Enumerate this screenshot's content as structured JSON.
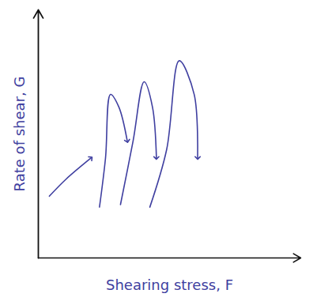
{
  "chart_data": {
    "type": "line",
    "x_label": "Shearing stress, F",
    "y_label": "Rate of shear, G",
    "xlim": [
      0,
      100
    ],
    "ylim": [
      0,
      100
    ],
    "tick_labels": false,
    "series": [
      {
        "color": "#3f3fa0",
        "marker": "arrow",
        "x": [
          4.2,
          10.5,
          20.1
        ],
        "values": [
          24.9,
          31.7,
          40.3
        ]
      },
      {
        "color": "#3f3fa0",
        "marker": "arrow",
        "x": [
          23.3,
          25.6,
          27.5,
          30.7,
          33.9
        ],
        "values": [
          20.5,
          40.3,
          65.9,
          60.8,
          47.1
        ]
      },
      {
        "color": "#3f3fa0",
        "marker": "arrow",
        "x": [
          31.3,
          36.1,
          40.3,
          43.5,
          45.0
        ],
        "values": [
          21.5,
          47.1,
          71.0,
          60.8,
          40.3
        ]
      },
      {
        "color": "#3f3fa0",
        "marker": "arrow",
        "x": [
          42.5,
          48.9,
          53.7,
          59.4,
          60.7
        ],
        "values": [
          20.5,
          43.7,
          79.5,
          65.9,
          40.3
        ]
      }
    ]
  }
}
